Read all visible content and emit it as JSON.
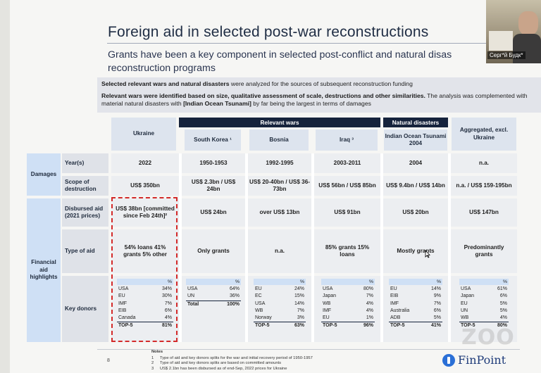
{
  "slide": {
    "title": "Foreign aid in selected post-war reconstructions",
    "subtitle": "Grants have been a key component in selected post-conflict and natural disas reconstruction programs",
    "intro_line1_bold": "Selected relevant wars and natural disasters",
    "intro_line1_rest": " were analyzed for the sources of subsequent reconstruction funding",
    "intro_line2_bold": "Relevant wars were identified based on size, qualitative assessment of scale, destructions and other similarities.",
    "intro_line2_rest": " The analysis was complemented with material natural disasters with ",
    "intro_line2_bold2": "[Indian Ocean Tsunami]",
    "intro_line2_rest2": " by far being the largest in terms of damages",
    "page_number": "8"
  },
  "table": {
    "group_relevant_wars": "Relevant wars",
    "group_natural_disasters": "Natural disasters",
    "columns": {
      "ukraine": "Ukraine",
      "south_korea": "South Korea ¹",
      "bosnia": "Bosnia",
      "iraq": "Iraq ³",
      "tsunami": "Indian Ocean Tsunami 2004",
      "aggregated": "Aggregated, excl. Ukraine"
    },
    "groups": {
      "damages": "Damages",
      "financial": "Financial aid highlights"
    },
    "row_labels": {
      "years": "Year(s)",
      "scope": "Scope of destruction",
      "disbursed": "Disbursed aid (2021 prices)",
      "type": "Type of aid",
      "donors": "Key donors"
    },
    "years": [
      "2022",
      "1950-1953",
      "1992-1995",
      "2003-2011",
      "2004",
      "n.a."
    ],
    "scope": [
      "US$ 350bn",
      "US$ 2.3bn / US$ 24bn",
      "US$ 20-40bn / US$ 36-73bn",
      "US$ 56bn / US$ 85bn",
      "US$ 9.4bn / US$ 14bn",
      "n.a. / US$ 159-195bn"
    ],
    "disbursed": [
      "US$ 38bn [committed since Feb 24th]²",
      "US$ 24bn",
      "over US$ 13bn",
      "US$ 91bn",
      "US$ 20bn",
      "US$ 147bn"
    ],
    "type": [
      "54% loans 41% grants 5% other",
      "Only grants",
      "n.a.",
      "85% grants 15% loans",
      "Mostly grants",
      "Predominantly grants"
    ],
    "pct_header": "%",
    "donors": [
      {
        "rows": [
          [
            "USA",
            "34%"
          ],
          [
            "EU",
            "30%"
          ],
          [
            "IMF",
            "7%"
          ],
          [
            "EIB",
            "6%"
          ],
          [
            "Canada",
            "4%"
          ]
        ],
        "total": [
          "TOP-5",
          "81%"
        ]
      },
      {
        "rows": [
          [
            "USA",
            "64%"
          ],
          [
            "UN",
            "36%"
          ]
        ],
        "total": [
          "Total",
          "100%"
        ]
      },
      {
        "rows": [
          [
            "EU",
            "24%"
          ],
          [
            "EC",
            "15%"
          ],
          [
            "USA",
            "14%"
          ],
          [
            "WB",
            "7%"
          ],
          [
            "Norway",
            "3%"
          ]
        ],
        "total": [
          "TOP-5",
          "63%"
        ]
      },
      {
        "rows": [
          [
            "USA",
            "80%"
          ],
          [
            "Japan",
            "7%"
          ],
          [
            "WB",
            "4%"
          ],
          [
            "IMF",
            "4%"
          ],
          [
            "EU",
            "1%"
          ]
        ],
        "total": [
          "TOP-5",
          "96%"
        ]
      },
      {
        "rows": [
          [
            "EU",
            "14%"
          ],
          [
            "EIB",
            "9%"
          ],
          [
            "IMF",
            "7%"
          ],
          [
            "Australia",
            "6%"
          ],
          [
            "ADB",
            "5%"
          ]
        ],
        "total": [
          "TOP-5",
          "41%"
        ]
      },
      {
        "rows": [
          [
            "USA",
            "61%"
          ],
          [
            "Japan",
            "6%"
          ],
          [
            "EU",
            "5%"
          ],
          [
            "UN",
            "5%"
          ],
          [
            "WB",
            "4%"
          ]
        ],
        "total": [
          "TOP-5",
          "80%"
        ]
      }
    ]
  },
  "notes": {
    "heading": "Notes",
    "items": [
      [
        "1",
        "Type of aid and key donors splits for the war and initial recovery period of 1950-1957"
      ],
      [
        "2",
        "Type of aid and key donors splits are based on committed amounts"
      ],
      [
        "3",
        "US$ 2.1bn has been disbursed as of end-Sep, 2022 prices for Ukraine"
      ]
    ]
  },
  "branding": {
    "logo": "FinPoint",
    "watermark": "ZOO"
  },
  "video": {
    "participant_name": "Серг*й Будк*"
  }
}
